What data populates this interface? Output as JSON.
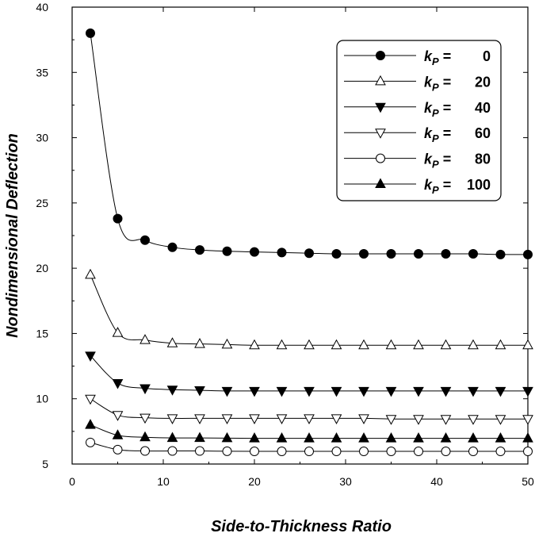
{
  "chart_data": {
    "type": "line",
    "title": "",
    "xlabel": "Side-to-Thickness  Ratio",
    "ylabel": "Nondimensional  Deflection",
    "xlim": [
      0,
      50
    ],
    "ylim": [
      5,
      40
    ],
    "xticks": [
      0,
      10,
      20,
      30,
      40,
      50
    ],
    "yticks": [
      5,
      10,
      15,
      20,
      25,
      30,
      35,
      40
    ],
    "legend_position": "top-right",
    "legend_symbol": "k",
    "legend_subscript": "P",
    "x": [
      2,
      5,
      8,
      11,
      14,
      17,
      20,
      23,
      26,
      29,
      32,
      35,
      38,
      41,
      44,
      47,
      50
    ],
    "series": [
      {
        "name": "0",
        "marker": "circle-filled",
        "values": [
          38.0,
          23.8,
          22.15,
          21.6,
          21.4,
          21.3,
          21.25,
          21.2,
          21.15,
          21.1,
          21.1,
          21.1,
          21.1,
          21.1,
          21.1,
          21.05,
          21.05
        ]
      },
      {
        "name": "20",
        "marker": "triangle-up-open",
        "values": [
          19.5,
          15.05,
          14.5,
          14.25,
          14.2,
          14.15,
          14.1,
          14.1,
          14.1,
          14.1,
          14.1,
          14.1,
          14.1,
          14.1,
          14.1,
          14.1,
          14.1
        ]
      },
      {
        "name": "40",
        "marker": "triangle-down-filled",
        "values": [
          13.3,
          11.2,
          10.8,
          10.7,
          10.65,
          10.6,
          10.6,
          10.6,
          10.6,
          10.6,
          10.6,
          10.6,
          10.6,
          10.6,
          10.6,
          10.6,
          10.6
        ]
      },
      {
        "name": "60",
        "marker": "triangle-down-open",
        "values": [
          10.0,
          8.75,
          8.55,
          8.5,
          8.5,
          8.5,
          8.5,
          8.5,
          8.5,
          8.5,
          8.5,
          8.45,
          8.45,
          8.45,
          8.45,
          8.45,
          8.45
        ]
      },
      {
        "name": "80",
        "marker": "circle-open",
        "values": [
          6.65,
          6.1,
          6.0,
          6.0,
          6.0,
          5.98,
          5.97,
          5.97,
          5.97,
          5.97,
          5.97,
          5.97,
          5.97,
          5.97,
          5.97,
          5.97,
          5.97
        ]
      },
      {
        "name": "100",
        "marker": "triangle-up-filled",
        "values": [
          8.0,
          7.2,
          7.05,
          7.0,
          7.0,
          6.98,
          6.97,
          6.97,
          6.97,
          6.97,
          6.97,
          6.97,
          6.97,
          6.97,
          6.97,
          6.97,
          6.97
        ]
      }
    ],
    "legend_order": [
      0,
      1,
      2,
      3,
      4,
      5
    ]
  }
}
